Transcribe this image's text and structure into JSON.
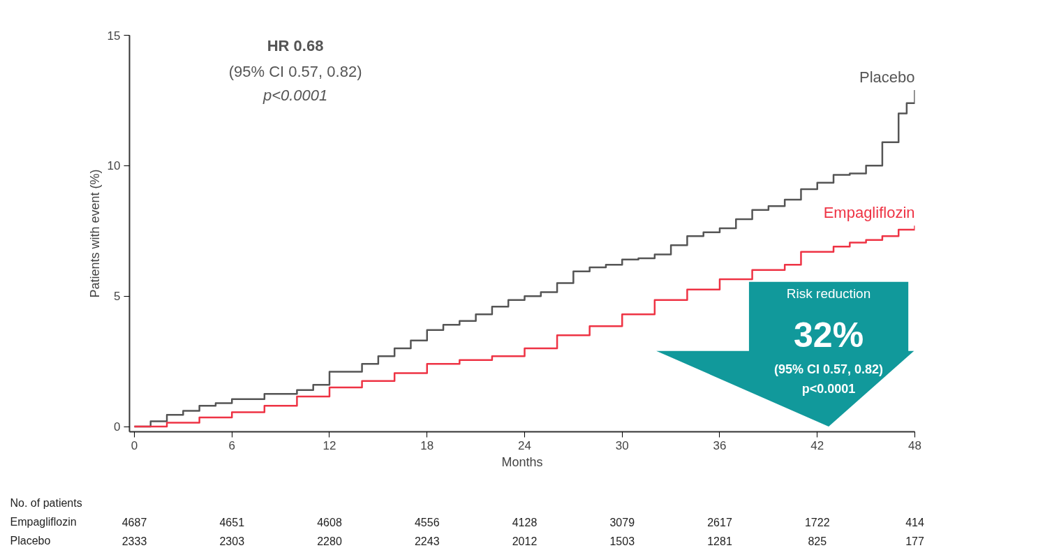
{
  "chart_data": {
    "type": "step",
    "xlabel": "Months",
    "ylabel": "Patients with event (%)",
    "xlim": [
      -0.3,
      48
    ],
    "ylim": [
      -0.2,
      15
    ],
    "xticks": [
      0,
      6,
      12,
      18,
      24,
      30,
      36,
      42,
      48
    ],
    "yticks": [
      0,
      5,
      10,
      15
    ],
    "grid": false,
    "line_style": "solid",
    "series": [
      {
        "name": "Placebo",
        "color": "#555555",
        "x": [
          0,
          1,
          2,
          3,
          4,
          5,
          6,
          8,
          10,
          11,
          12,
          14,
          15,
          16,
          17,
          18,
          19,
          20,
          21,
          22,
          23,
          24,
          25,
          26,
          27,
          28,
          29,
          30,
          31,
          32,
          33,
          34,
          35,
          36,
          37,
          38,
          39,
          40,
          41,
          42,
          43,
          44,
          45,
          46,
          47,
          47.5,
          48
        ],
        "values": [
          0,
          0.2,
          0.45,
          0.6,
          0.8,
          0.9,
          1.05,
          1.25,
          1.4,
          1.6,
          2.1,
          2.4,
          2.7,
          3.0,
          3.3,
          3.7,
          3.9,
          4.05,
          4.3,
          4.6,
          4.85,
          5.0,
          5.15,
          5.5,
          5.95,
          6.1,
          6.2,
          6.4,
          6.45,
          6.6,
          6.95,
          7.3,
          7.45,
          7.6,
          7.95,
          8.3,
          8.45,
          8.7,
          9.1,
          9.35,
          9.65,
          9.7,
          10.0,
          10.9,
          12.0,
          12.4,
          12.9
        ]
      },
      {
        "name": "Empagliflozin",
        "color": "#ee3344",
        "x": [
          0,
          2,
          4,
          6,
          8,
          10,
          12,
          14,
          16,
          18,
          20,
          22,
          24,
          26,
          28,
          30,
          32,
          34,
          36,
          38,
          40,
          41,
          43,
          44,
          45,
          46,
          47,
          48
        ],
        "values": [
          0,
          0.15,
          0.35,
          0.55,
          0.8,
          1.15,
          1.5,
          1.75,
          2.05,
          2.4,
          2.55,
          2.7,
          3.0,
          3.5,
          3.85,
          4.3,
          4.85,
          5.25,
          5.65,
          6.0,
          6.2,
          6.7,
          6.9,
          7.05,
          7.15,
          7.3,
          7.55,
          7.7
        ]
      }
    ],
    "annotations": [
      "HR 0.68",
      "(95% CI 0.57, 0.82)",
      "p<0.0001",
      "Risk reduction",
      "32%",
      "(95% CI 0.57, 0.82)",
      "p<0.0001",
      "No. of patients",
      "Empagliflozin",
      "4687",
      "4651",
      "4608",
      "4556",
      "4128",
      "3079",
      "2617",
      "1722",
      "414",
      "Placebo",
      "2333",
      "2303",
      "2280",
      "2243",
      "2012",
      "1503",
      "1281",
      "825",
      "177"
    ]
  }
}
